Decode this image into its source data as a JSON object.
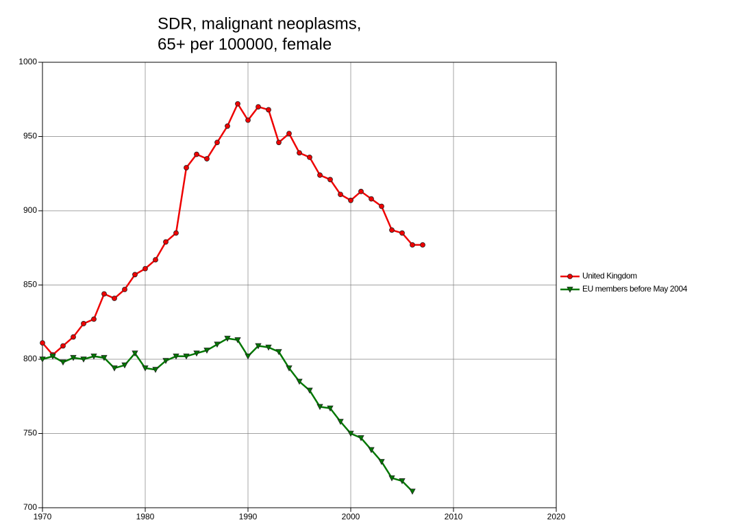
{
  "chart_data": {
    "type": "line",
    "title": [
      "SDR, malignant neoplasms,",
      "65+ per 100000, female"
    ],
    "x": [
      1970,
      1971,
      1972,
      1973,
      1974,
      1975,
      1976,
      1977,
      1978,
      1979,
      1980,
      1981,
      1982,
      1983,
      1984,
      1985,
      1986,
      1987,
      1988,
      1989,
      1990,
      1991,
      1992,
      1993,
      1994,
      1995,
      1996,
      1997,
      1998,
      1999,
      2000,
      2001,
      2002,
      2003,
      2004,
      2005,
      2006,
      2007
    ],
    "series": [
      {
        "name": "United Kingdom",
        "color": "#ee0000",
        "marker": "circle",
        "values": [
          811,
          803,
          809,
          815,
          824,
          827,
          844,
          841,
          847,
          857,
          861,
          867,
          879,
          885,
          929,
          938,
          935,
          946,
          957,
          972,
          961,
          970,
          968,
          946,
          952,
          939,
          936,
          924,
          921,
          911,
          907,
          913,
          908,
          903,
          887,
          885,
          877,
          877
        ]
      },
      {
        "name": "EU members before May 2004",
        "color": "#007700",
        "marker": "triangle-down",
        "values": [
          800,
          802,
          798,
          801,
          800,
          802,
          801,
          794,
          796,
          804,
          794,
          793,
          799,
          802,
          802,
          804,
          806,
          810,
          814,
          813,
          802,
          809,
          808,
          805,
          794,
          785,
          779,
          768,
          767,
          758,
          750,
          747,
          739,
          731,
          720,
          718,
          711,
          null
        ]
      }
    ],
    "xlim": [
      1970,
      2020
    ],
    "xticks": [
      1970,
      1980,
      1990,
      2000,
      2010,
      2020
    ],
    "ylim": [
      700,
      1000
    ],
    "yticks": [
      700,
      750,
      800,
      850,
      900,
      950,
      1000
    ],
    "grid": true,
    "legend": "right"
  }
}
